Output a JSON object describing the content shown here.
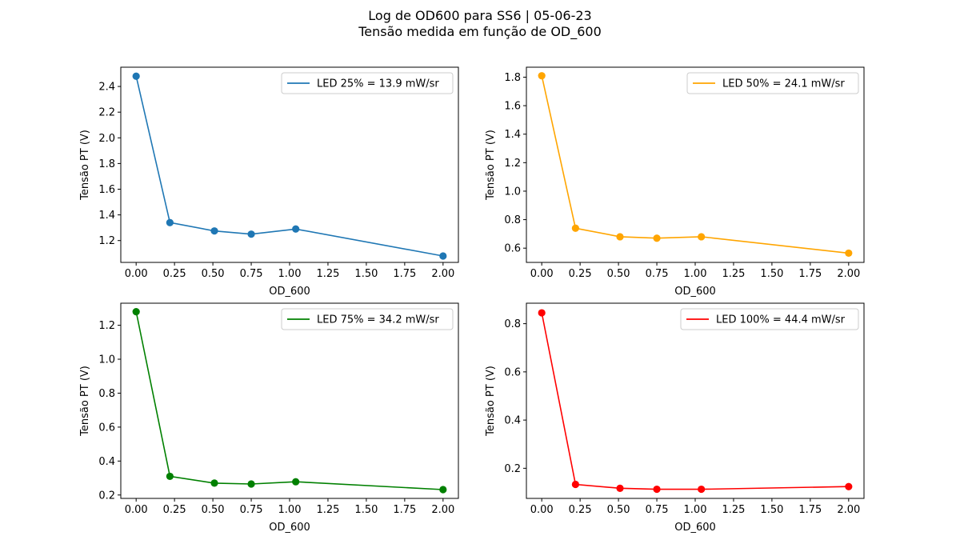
{
  "figure": {
    "title": "Log de OD600 para SS6 | 05-06-23",
    "subtitle": "Tensão medida em função de OD_600"
  },
  "chart_data": [
    {
      "type": "line",
      "xlabel": "OD_600",
      "ylabel": "Tensão PT (V)",
      "xlim": [
        -0.1,
        2.1
      ],
      "ylim": [
        1.03,
        2.55
      ],
      "xticks": [
        "0.00",
        "0.25",
        "0.50",
        "0.75",
        "1.00",
        "1.25",
        "1.50",
        "1.75",
        "2.00"
      ],
      "yticks": [
        "1.2",
        "1.4",
        "1.6",
        "1.8",
        "2.0",
        "2.2",
        "2.4"
      ],
      "grid": false,
      "legend": "top-right",
      "color": "#1f77b4",
      "series": [
        {
          "name": "LED 25% = 13.9 mW/sr",
          "x": [
            0.0,
            0.22,
            0.51,
            0.75,
            1.04,
            2.0
          ],
          "y": [
            2.48,
            1.34,
            1.275,
            1.25,
            1.29,
            1.08
          ]
        }
      ]
    },
    {
      "type": "line",
      "xlabel": "OD_600",
      "ylabel": "Tensão PT (V)",
      "xlim": [
        -0.1,
        2.1
      ],
      "ylim": [
        0.5,
        1.87
      ],
      "xticks": [
        "0.00",
        "0.25",
        "0.50",
        "0.75",
        "1.00",
        "1.25",
        "1.50",
        "1.75",
        "2.00"
      ],
      "yticks": [
        "0.6",
        "0.8",
        "1.0",
        "1.2",
        "1.4",
        "1.6",
        "1.8"
      ],
      "grid": false,
      "legend": "top-right",
      "color": "#ffa500",
      "series": [
        {
          "name": "LED 50% = 24.1 mW/sr",
          "x": [
            0.0,
            0.22,
            0.51,
            0.75,
            1.04,
            2.0
          ],
          "y": [
            1.81,
            0.74,
            0.68,
            0.67,
            0.68,
            0.565
          ]
        }
      ]
    },
    {
      "type": "line",
      "xlabel": "OD_600",
      "ylabel": "Tensão PT (V)",
      "xlim": [
        -0.1,
        2.1
      ],
      "ylim": [
        0.18,
        1.33
      ],
      "xticks": [
        "0.00",
        "0.25",
        "0.50",
        "0.75",
        "1.00",
        "1.25",
        "1.50",
        "1.75",
        "2.00"
      ],
      "yticks": [
        "0.2",
        "0.4",
        "0.6",
        "0.8",
        "1.0",
        "1.2"
      ],
      "grid": false,
      "legend": "top-right",
      "color": "#008000",
      "series": [
        {
          "name": "LED 75% = 34.2 mW/sr",
          "x": [
            0.0,
            0.22,
            0.51,
            0.75,
            1.04,
            2.0
          ],
          "y": [
            1.28,
            0.31,
            0.27,
            0.265,
            0.278,
            0.232
          ]
        }
      ]
    },
    {
      "type": "line",
      "xlabel": "OD_600",
      "ylabel": "Tensão PT (V)",
      "xlim": [
        -0.1,
        2.1
      ],
      "ylim": [
        0.075,
        0.885
      ],
      "xticks": [
        "0.00",
        "0.25",
        "0.50",
        "0.75",
        "1.00",
        "1.25",
        "1.50",
        "1.75",
        "2.00"
      ],
      "yticks": [
        "0.2",
        "0.4",
        "0.6",
        "0.8"
      ],
      "grid": false,
      "legend": "top-right",
      "color": "#ff0000",
      "series": [
        {
          "name": "LED 100% = 44.4 mW/sr",
          "x": [
            0.0,
            0.22,
            0.51,
            0.75,
            1.04,
            2.0
          ],
          "y": [
            0.845,
            0.133,
            0.117,
            0.113,
            0.113,
            0.124
          ]
        }
      ]
    }
  ]
}
